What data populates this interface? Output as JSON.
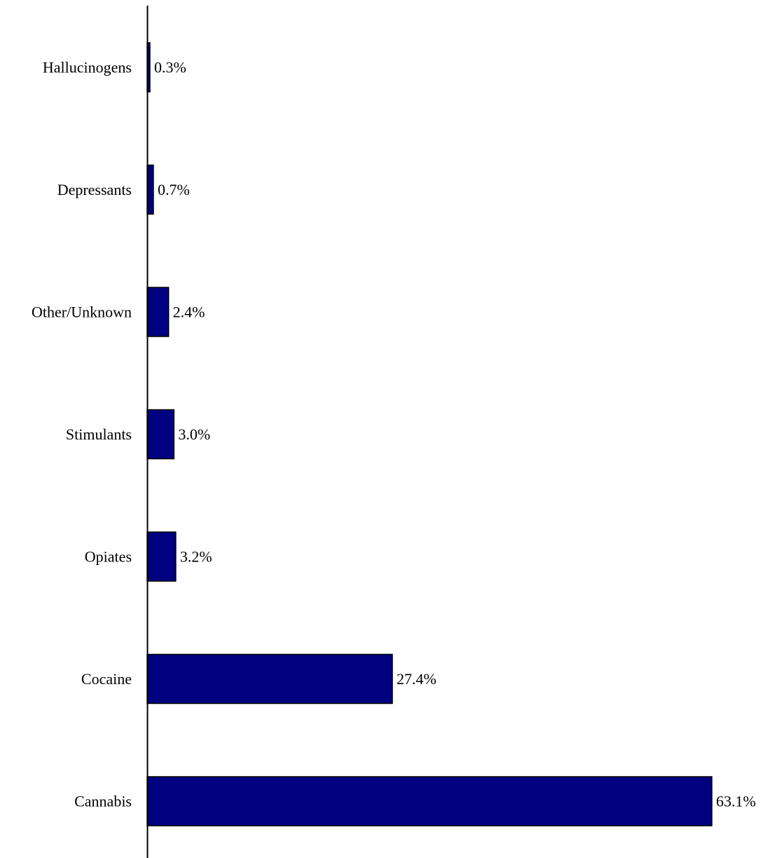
{
  "chart_data": {
    "type": "bar",
    "orientation": "horizontal",
    "categories": [
      "Hallucinogens",
      "Depressants",
      "Other/Unknown",
      "Stimulants",
      "Opiates",
      "Cocaine",
      "Cannabis"
    ],
    "values": [
      0.3,
      0.7,
      2.4,
      3.0,
      3.2,
      27.4,
      63.1
    ],
    "data_labels": [
      "0.3%",
      "0.7%",
      "2.4%",
      "3.0%",
      "3.2%",
      "27.4%",
      "63.1%"
    ],
    "value_unit": "%",
    "xlim": [
      0,
      63.1
    ],
    "grid": false,
    "legend": "none",
    "bar_color": "#000080",
    "bar_edge_color": "#000000",
    "title": "",
    "xlabel": "",
    "ylabel": ""
  }
}
